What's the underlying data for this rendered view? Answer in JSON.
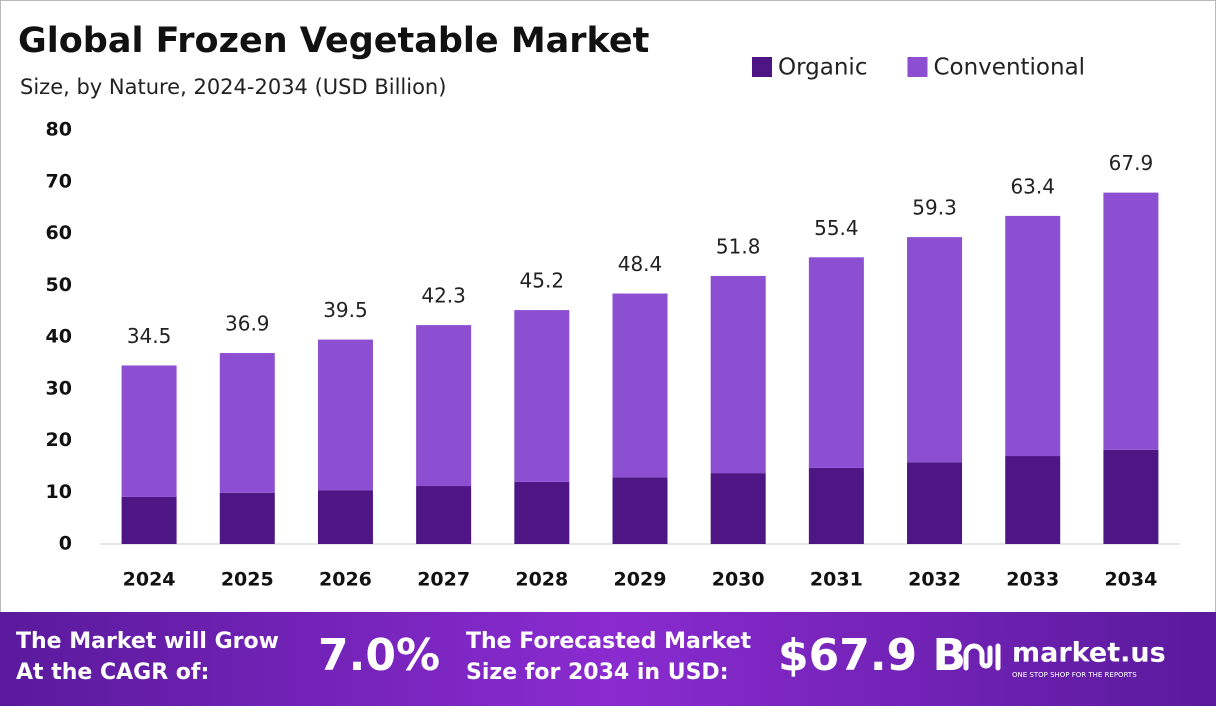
{
  "chart_data": {
    "type": "stacked-bar",
    "title": "Global Frozen Vegetable Market",
    "subtitle": "Size, by  Nature, 2024-2034 (USD Billion)",
    "categories": [
      "2024",
      "2025",
      "2026",
      "2027",
      "2028",
      "2029",
      "2030",
      "2031",
      "2032",
      "2033",
      "2034"
    ],
    "series": [
      {
        "name": "Organic",
        "color": "#4e1585",
        "values": [
          9.1,
          9.9,
          10.4,
          11.2,
          12.0,
          12.9,
          13.7,
          14.7,
          15.8,
          17.0,
          18.2
        ]
      },
      {
        "name": "Conventional",
        "color": "#8c4fd1",
        "values": [
          25.4,
          27.0,
          29.1,
          31.1,
          33.2,
          35.5,
          38.1,
          40.7,
          43.5,
          46.4,
          49.7
        ]
      }
    ],
    "totals": [
      34.5,
      36.9,
      39.5,
      42.3,
      45.2,
      48.4,
      51.8,
      55.4,
      59.3,
      63.4,
      67.9
    ],
    "ylim": [
      0,
      80
    ],
    "yticks": [
      0,
      10,
      20,
      30,
      40,
      50,
      60,
      70,
      80
    ],
    "grid": false,
    "legend": "top-right"
  },
  "footer": {
    "cagr_text": [
      "The Market will Grow",
      "At the CAGR of:"
    ],
    "cagr": "7.0%",
    "forecast_text": [
      "The Forecasted Market",
      "Size for 2034 in USD:"
    ],
    "forecast": "$67.9 B",
    "brand": "market.us",
    "tagline": "ONE STOP SHOP FOR THE REPORTS"
  }
}
